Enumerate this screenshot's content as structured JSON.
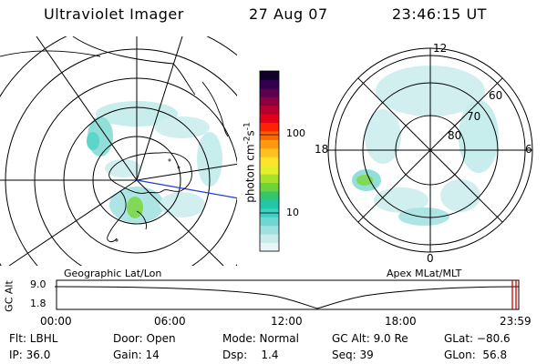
{
  "header": {
    "instrument": "Ultraviolet Imager",
    "date": "27 Aug 07",
    "time": "23:46:15 UT"
  },
  "left_panel": {
    "caption": "Geographic Lat/Lon"
  },
  "right_panel": {
    "caption": "Apex MLat/MLT",
    "mlt_labels": {
      "top": "12",
      "right": "6",
      "bottom": "0",
      "left": "18"
    },
    "lat_labels": [
      "60",
      "70",
      "80"
    ]
  },
  "colorbar": {
    "unit": "photon cm",
    "unit_sup1": "-2",
    "unit_s": "s",
    "unit_sup2": "-1",
    "ticks": [
      "100",
      "10"
    ],
    "colors": [
      "#e6f6f6",
      "#c8ecec",
      "#9fe0e0",
      "#6fd6d2",
      "#3ed0c2",
      "#22c6a8",
      "#34c66a",
      "#6cd33a",
      "#a8e02c",
      "#e4ee2a",
      "#ffe22a",
      "#ffc020",
      "#ff9a10",
      "#ff6600",
      "#ff2200",
      "#e0001a",
      "#b80030",
      "#8a0040",
      "#5a0050",
      "#30004a",
      "#10002a"
    ]
  },
  "altitude": {
    "axis_label": "GC Alt",
    "ticks": [
      "9.0",
      "1.8"
    ],
    "time_ticks": [
      "00:00",
      "06:00",
      "12:00",
      "18:00",
      "23:59"
    ],
    "current_marker_color": "#cc0000"
  },
  "footer": {
    "filter": "Flt: LBHL",
    "ip": "IP: 36.0",
    "door": "Door: Open",
    "gain": "Gain: 14",
    "mode": "Mode: Normal",
    "dsp": "Dsp:    1.4",
    "gc_alt": "GC Alt: 9.0 Re",
    "seq": "Seq: 39",
    "glat": "GLat: −80.6",
    "glon": "GLon:  56.8"
  }
}
